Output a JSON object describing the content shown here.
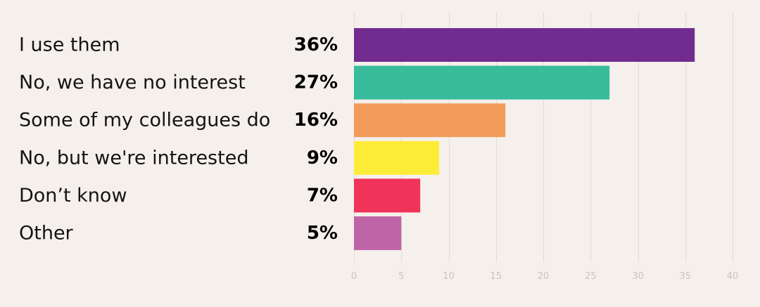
{
  "chart_data": {
    "type": "bar",
    "orientation": "horizontal",
    "title": "",
    "xlabel": "",
    "ylabel": "",
    "categories": [
      "I use them",
      "No, we have no interest",
      "Some of my colleagues do",
      "No, but we're interested",
      "Don’t know",
      "Other"
    ],
    "values": [
      36,
      27,
      16,
      9,
      7,
      5
    ],
    "value_labels": [
      "36%",
      "27%",
      "16%",
      "9%",
      "7%",
      "5%"
    ],
    "colors": [
      "#722c90",
      "#38bc9c",
      "#f29b5a",
      "#fdec37",
      "#f03358",
      "#c064a8"
    ],
    "xlim": [
      0,
      40
    ],
    "xticks": [
      0,
      5,
      10,
      15,
      20,
      25,
      30,
      35,
      40
    ],
    "grid": true,
    "legend": "none",
    "background": "#f5f0ec"
  }
}
